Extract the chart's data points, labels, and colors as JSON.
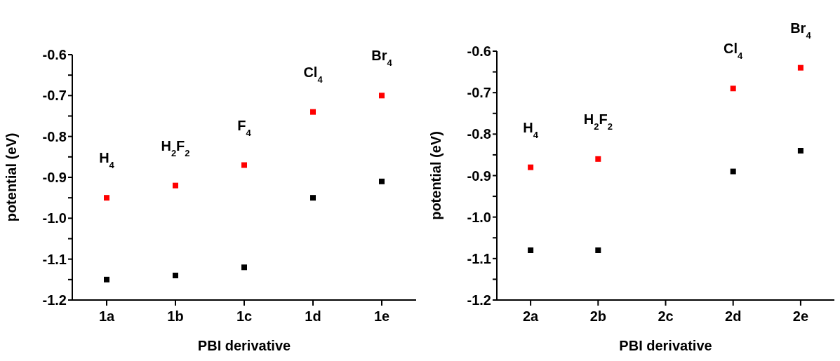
{
  "chart_data": [
    {
      "type": "scatter",
      "xlabel": "PBI derivative",
      "ylabel": "potential (eV)",
      "categories": [
        "1a",
        "1b",
        "1c",
        "1d",
        "1e"
      ],
      "series": [
        {
          "color": "#ff0000",
          "values": [
            -0.95,
            -0.92,
            -0.87,
            -0.74,
            -0.7
          ]
        },
        {
          "color": "#000000",
          "values": [
            -1.15,
            -1.14,
            -1.12,
            -0.95,
            -0.91
          ]
        }
      ],
      "ylim": [
        -1.2,
        -0.6
      ],
      "yticks": [
        {
          "value": -1.2,
          "label": "-1.2"
        },
        {
          "value": -1.15,
          "label": null
        },
        {
          "value": -1.1,
          "label": "-1.1"
        },
        {
          "value": -1.05,
          "label": null
        },
        {
          "value": -1.0,
          "label": "-1.0"
        },
        {
          "value": -0.95,
          "label": null
        },
        {
          "value": -0.9,
          "label": "-0.9"
        },
        {
          "value": -0.85,
          "label": null
        },
        {
          "value": -0.8,
          "label": "-0.8"
        },
        {
          "value": -0.75,
          "label": null
        },
        {
          "value": -0.7,
          "label": "-0.7"
        },
        {
          "value": -0.65,
          "label": null
        },
        {
          "value": -0.6,
          "label": "-0.6"
        }
      ],
      "marker": "square",
      "grid": false,
      "legend": false,
      "annotations": [
        "H$_{4}$",
        "H$_{2}$F$_{2}$",
        "F$_{4}$",
        "Cl$_{4}$",
        "Br$_{4}$"
      ]
    },
    {
      "type": "scatter",
      "xlabel": "PBI derivative",
      "ylabel": "potential (eV)",
      "categories": [
        "2a",
        "2b",
        "2c",
        "2d",
        "2e"
      ],
      "series": [
        {
          "color": "#ff0000",
          "values": [
            -0.88,
            -0.86,
            null,
            -0.69,
            -0.64
          ]
        },
        {
          "color": "#000000",
          "values": [
            -1.08,
            -1.08,
            null,
            -0.89,
            -0.84
          ]
        }
      ],
      "ylim": [
        -1.2,
        -0.6
      ],
      "yticks": [
        {
          "value": -1.2,
          "label": "-1.2"
        },
        {
          "value": -1.15,
          "label": null
        },
        {
          "value": -1.1,
          "label": "-1.1"
        },
        {
          "value": -1.05,
          "label": null
        },
        {
          "value": -1.0,
          "label": "-1.0"
        },
        {
          "value": -0.95,
          "label": null
        },
        {
          "value": -0.9,
          "label": "-0.9"
        },
        {
          "value": -0.85,
          "label": null
        },
        {
          "value": -0.8,
          "label": "-0.8"
        },
        {
          "value": -0.75,
          "label": null
        },
        {
          "value": -0.7,
          "label": "-0.7"
        },
        {
          "value": -0.65,
          "label": null
        },
        {
          "value": -0.6,
          "label": "-0.6"
        }
      ],
      "marker": "square",
      "grid": false,
      "legend": false,
      "annotations": [
        "H$_{4}$",
        "H$_{2}$F$_{2}$",
        "Cl$_{4}$",
        "Br$_{4}$"
      ]
    }
  ]
}
